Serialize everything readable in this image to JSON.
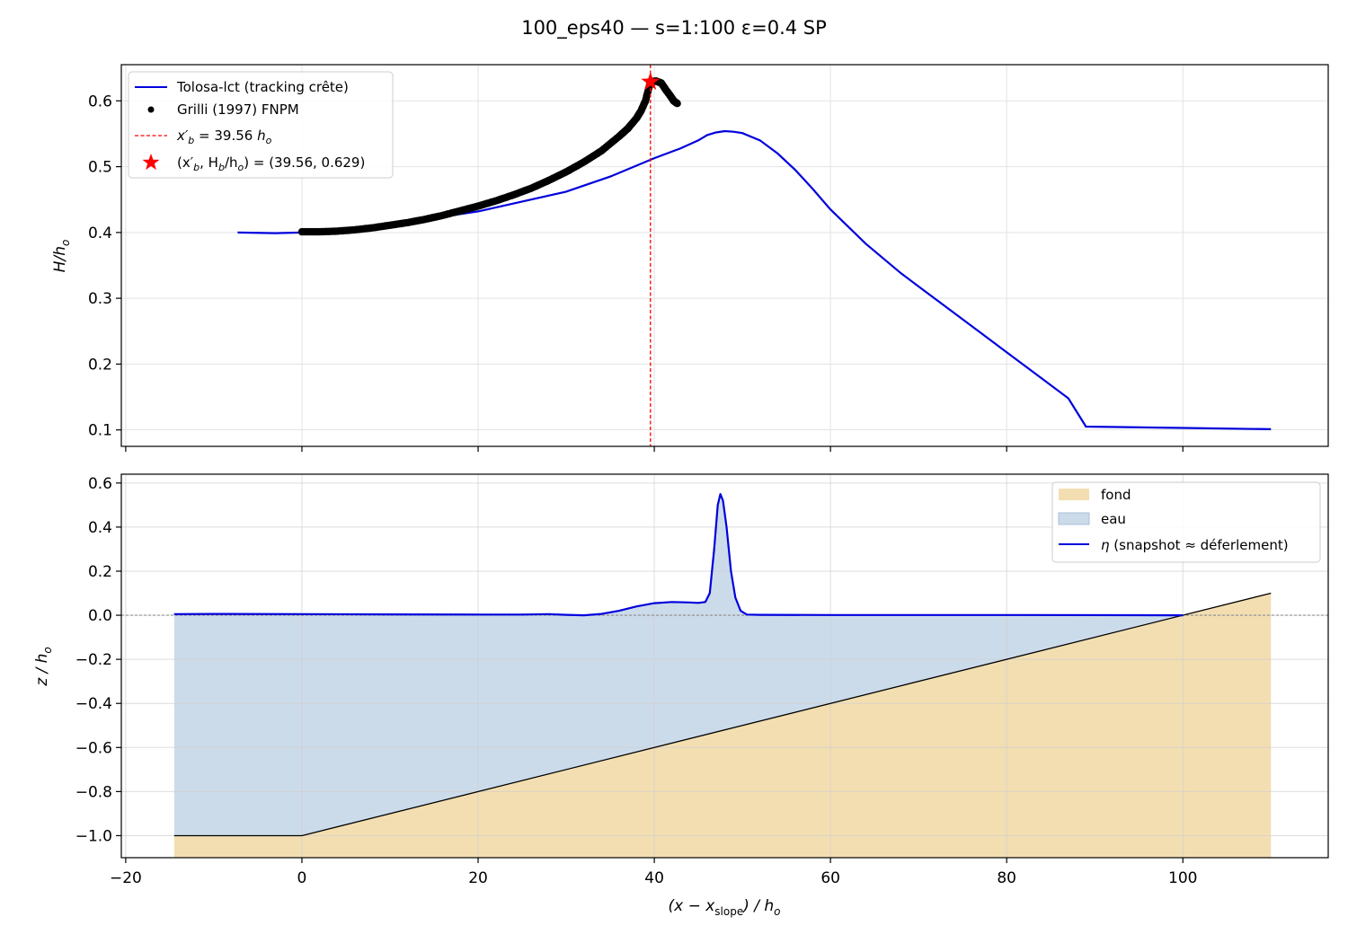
{
  "suptitle": "100_eps40  —  s=1:100  ε=0.4  SP",
  "chart_data": [
    {
      "type": "line",
      "panel": "top",
      "ylabel": "H/h",
      "ylabel_sub": "o",
      "xlim": [
        -20.5,
        116.5
      ],
      "ylim": [
        0.075,
        0.655
      ],
      "xticks": [
        -20,
        0,
        20,
        40,
        60,
        80,
        100
      ],
      "yticks": [
        0.1,
        0.2,
        0.3,
        0.4,
        0.5,
        0.6
      ],
      "grid": true,
      "legend_position": "upper-left",
      "series": [
        {
          "name": "Tolosa-lct (tracking crête)",
          "kind": "line",
          "color": "#0000dd",
          "x": [
            -7.3,
            -3,
            0,
            5,
            10,
            15,
            20,
            25,
            30,
            35,
            40,
            43,
            45,
            46,
            47,
            48,
            49,
            50,
            52,
            54,
            56,
            58,
            60,
            64,
            68,
            72,
            76,
            80,
            84,
            87,
            89,
            100,
            110
          ],
          "y": [
            0.4,
            0.399,
            0.4,
            0.405,
            0.413,
            0.422,
            0.432,
            0.447,
            0.462,
            0.485,
            0.513,
            0.528,
            0.54,
            0.548,
            0.552,
            0.554,
            0.553,
            0.551,
            0.54,
            0.52,
            0.495,
            0.466,
            0.435,
            0.383,
            0.338,
            0.298,
            0.258,
            0.218,
            0.178,
            0.148,
            0.105,
            0.103,
            0.101
          ]
        },
        {
          "name": "Grilli (1997) FNPM",
          "kind": "scatter",
          "color": "#000000",
          "x": [
            0,
            2,
            4,
            6,
            8,
            10,
            12,
            14,
            16,
            18,
            20,
            22,
            24,
            26,
            28,
            30,
            32,
            34,
            36,
            37,
            38,
            38.5,
            39,
            39.56,
            40.2,
            40.8,
            41.3,
            41.8,
            42.2,
            42.6
          ],
          "y": [
            0.401,
            0.401,
            0.402,
            0.404,
            0.407,
            0.411,
            0.415,
            0.42,
            0.426,
            0.433,
            0.44,
            0.448,
            0.457,
            0.467,
            0.479,
            0.492,
            0.507,
            0.524,
            0.546,
            0.558,
            0.574,
            0.585,
            0.6,
            0.629,
            0.63,
            0.627,
            0.617,
            0.608,
            0.6,
            0.596
          ]
        },
        {
          "name": "x′b = 39.56 ho",
          "kind": "vline",
          "color": "#ff0000",
          "x": 39.56
        },
        {
          "name": "(x′b, Hb/ho) = (39.56, 0.629)",
          "kind": "marker",
          "color": "#ff0000",
          "x": 39.56,
          "y": 0.629
        }
      ]
    },
    {
      "type": "area",
      "panel": "bottom",
      "xlabel": "(x − xslope) / ho",
      "ylabel": "z / h",
      "ylabel_sub": "o",
      "xlim": [
        -20.5,
        116.5
      ],
      "ylim": [
        -1.1,
        0.64
      ],
      "xticks": [
        -20,
        0,
        20,
        40,
        60,
        80,
        100
      ],
      "yticks": [
        -1.0,
        -0.8,
        -0.6,
        -0.4,
        -0.2,
        0.0,
        0.2,
        0.4,
        0.6
      ],
      "grid": true,
      "legend_position": "upper-right",
      "series": [
        {
          "name": "fond",
          "kind": "fill",
          "color": "#f3deb2",
          "x": [
            -14.5,
            0,
            110
          ],
          "y": [
            -1.0,
            -1.0,
            0.1
          ]
        },
        {
          "name": "eau",
          "kind": "fill",
          "color": "#ccdbea"
        },
        {
          "name": "η (snapshot ≈ déferlement)",
          "kind": "line",
          "color": "#0000dd",
          "x": [
            -14.5,
            -10,
            0,
            10,
            20,
            25,
            28,
            30,
            32,
            34,
            36,
            38,
            40,
            42,
            44,
            45,
            45.8,
            46.3,
            46.8,
            47.2,
            47.5,
            47.8,
            48.2,
            48.7,
            49.2,
            49.8,
            50.5,
            52,
            60,
            80,
            100
          ],
          "y": [
            0.005,
            0.006,
            0.005,
            0.004,
            0.003,
            0.003,
            0.005,
            0.002,
            0.0,
            0.006,
            0.02,
            0.04,
            0.055,
            0.06,
            0.058,
            0.056,
            0.06,
            0.1,
            0.3,
            0.5,
            0.55,
            0.52,
            0.4,
            0.2,
            0.08,
            0.02,
            0.003,
            0.002,
            0.001,
            0.001,
            0.0
          ]
        }
      ]
    }
  ],
  "legend_top": {
    "item1": "Tolosa-lct (tracking crête)",
    "item2": "Grilli (1997) FNPM",
    "item3_pre": "x′",
    "item3_sub": "b",
    "item3_mid": " = 39.56 ",
    "item3_h": "h",
    "item3_hsub": "o",
    "item4_a": "(x′",
    "item4_asub": "b",
    "item4_b": ", H",
    "item4_bsub": "b",
    "item4_c": "/h",
    "item4_csub": "o",
    "item4_d": ") = (39.56, 0.629)"
  },
  "legend_bottom": {
    "item1": "fond",
    "item2": "eau",
    "item3_eta": "η",
    "item3_rest": " (snapshot  ≈  déferlement)"
  },
  "xlabel_parts": {
    "open": "(x − x",
    "sub": "slope",
    "close": ") / h",
    "hsub": "o"
  }
}
